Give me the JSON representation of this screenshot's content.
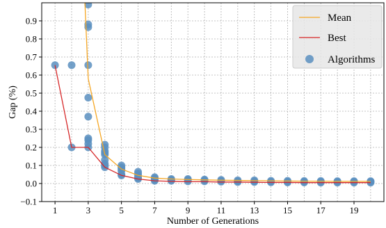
{
  "chart_data": {
    "type": "line",
    "title": "",
    "xlabel": "Number of Generations",
    "ylabel": "Gap (%)",
    "xlim": [
      0.2,
      20.8
    ],
    "ylim": [
      -0.1,
      1.0
    ],
    "xticks": [
      1,
      3,
      5,
      7,
      9,
      11,
      13,
      15,
      17,
      19
    ],
    "yticks": [
      -0.1,
      0.0,
      0.1,
      0.2,
      0.3,
      0.4,
      0.5,
      0.6,
      0.7,
      0.8,
      0.9
    ],
    "ytick_labels": [
      "−0.1",
      "0.0",
      "0.1",
      "0.2",
      "0.3",
      "0.4",
      "0.5",
      "0.6",
      "0.7",
      "0.8",
      "0.9"
    ],
    "grid": true,
    "legend_position": "top-right",
    "colors": {
      "mean": "#f5a623",
      "best": "#d62728",
      "algorithms": "#5b8fc0"
    },
    "series": [
      {
        "name": "Mean",
        "kind": "line",
        "x": [
          2.8,
          3,
          4,
          5,
          6,
          7,
          8,
          9,
          10,
          11,
          12,
          13,
          14,
          15,
          16,
          17,
          18,
          19,
          20
        ],
        "y": [
          1.0,
          0.58,
          0.16,
          0.08,
          0.045,
          0.03,
          0.025,
          0.022,
          0.02,
          0.018,
          0.017,
          0.016,
          0.015,
          0.014,
          0.013,
          0.013,
          0.012,
          0.012,
          0.012
        ]
      },
      {
        "name": "Best",
        "kind": "line",
        "x": [
          1,
          2,
          3,
          4,
          5,
          6,
          7,
          8,
          9,
          10,
          11,
          12,
          13,
          14,
          15,
          16,
          17,
          18,
          19,
          20
        ],
        "y": [
          0.655,
          0.2,
          0.2,
          0.09,
          0.045,
          0.025,
          0.015,
          0.012,
          0.01,
          0.01,
          0.008,
          0.008,
          0.007,
          0.006,
          0.006,
          0.005,
          0.005,
          0.005,
          0.005,
          0.005
        ]
      },
      {
        "name": "Algorithms",
        "kind": "scatter",
        "points": [
          [
            1,
            0.655
          ],
          [
            2,
            0.655
          ],
          [
            2,
            0.2
          ],
          [
            3,
            0.99
          ],
          [
            3,
            0.88
          ],
          [
            3,
            0.865
          ],
          [
            3,
            0.655
          ],
          [
            3,
            0.475
          ],
          [
            3,
            0.37
          ],
          [
            3,
            0.25
          ],
          [
            3,
            0.24
          ],
          [
            3,
            0.22
          ],
          [
            3,
            0.2
          ],
          [
            4,
            0.215
          ],
          [
            4,
            0.2
          ],
          [
            4,
            0.18
          ],
          [
            4,
            0.17
          ],
          [
            4,
            0.16
          ],
          [
            4,
            0.13
          ],
          [
            4,
            0.11
          ],
          [
            4,
            0.1
          ],
          [
            4,
            0.09
          ],
          [
            5,
            0.1
          ],
          [
            5,
            0.09
          ],
          [
            5,
            0.08
          ],
          [
            5,
            0.07
          ],
          [
            5,
            0.05
          ],
          [
            5,
            0.045
          ],
          [
            6,
            0.065
          ],
          [
            6,
            0.055
          ],
          [
            6,
            0.045
          ],
          [
            6,
            0.035
          ],
          [
            6,
            0.03
          ],
          [
            6,
            0.025
          ],
          [
            7,
            0.035
          ],
          [
            7,
            0.03
          ],
          [
            7,
            0.025
          ],
          [
            7,
            0.02
          ],
          [
            7,
            0.015
          ],
          [
            8,
            0.025
          ],
          [
            8,
            0.02
          ],
          [
            8,
            0.015
          ],
          [
            9,
            0.025
          ],
          [
            9,
            0.02
          ],
          [
            9,
            0.012
          ],
          [
            10,
            0.022
          ],
          [
            10,
            0.018
          ],
          [
            10,
            0.012
          ],
          [
            11,
            0.02
          ],
          [
            11,
            0.015
          ],
          [
            11,
            0.01
          ],
          [
            12,
            0.018
          ],
          [
            12,
            0.012
          ],
          [
            12,
            0.008
          ],
          [
            13,
            0.018
          ],
          [
            13,
            0.012
          ],
          [
            13,
            0.008
          ],
          [
            14,
            0.015
          ],
          [
            14,
            0.01
          ],
          [
            14,
            0.007
          ],
          [
            15,
            0.015
          ],
          [
            15,
            0.01
          ],
          [
            15,
            0.006
          ],
          [
            16,
            0.014
          ],
          [
            16,
            0.01
          ],
          [
            16,
            0.006
          ],
          [
            17,
            0.014
          ],
          [
            17,
            0.01
          ],
          [
            17,
            0.005
          ],
          [
            18,
            0.013
          ],
          [
            18,
            0.01
          ],
          [
            18,
            0.005
          ],
          [
            19,
            0.013
          ],
          [
            19,
            0.01
          ],
          [
            19,
            0.005
          ],
          [
            20,
            0.013
          ],
          [
            20,
            0.01
          ],
          [
            20,
            0.005
          ]
        ]
      }
    ]
  }
}
